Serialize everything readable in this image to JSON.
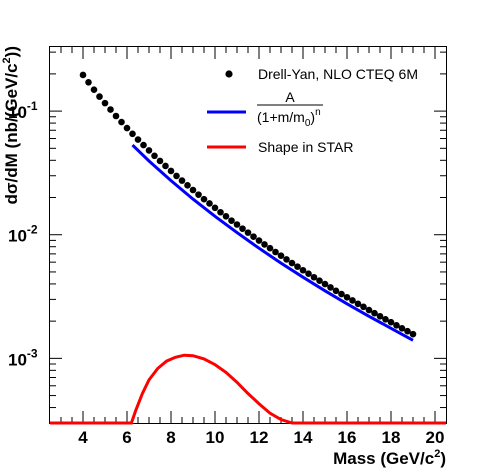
{
  "chart_data": {
    "type": "scatter",
    "xlabel": "Mass (GeV/c²)",
    "ylabel": "dσ/dM (nb/(GeV/c²))",
    "xlim": [
      2.5,
      20.5
    ],
    "ylim": [
      0.0003,
      0.33
    ],
    "yscale": "log",
    "grid": false,
    "legend_position": "top-right",
    "x_ticks": [
      4,
      6,
      8,
      10,
      12,
      14,
      16,
      18,
      20
    ],
    "x_tick_labels": [
      "4",
      "6",
      "8",
      "10",
      "12",
      "14",
      "16",
      "18",
      "20"
    ],
    "y_ticks": [
      0.001,
      0.01,
      0.1
    ],
    "y_tick_labels": [
      {
        "base": "10",
        "exp": "-3"
      },
      {
        "base": "10",
        "exp": "-2"
      },
      {
        "base": "10",
        "exp": "-1"
      }
    ],
    "series": [
      {
        "name": "Drell-Yan, NLO CTEQ 6M",
        "kind": "markers",
        "color": "#000000",
        "x_start": 4.0,
        "x_step": 0.25,
        "y": [
          0.196,
          0.171,
          0.149,
          0.131,
          0.116,
          0.103,
          0.0913,
          0.0815,
          0.0729,
          0.0655,
          0.0589,
          0.0531,
          0.0481,
          0.0435,
          0.0395,
          0.036,
          0.0328,
          0.0299,
          0.0274,
          0.0251,
          0.023,
          0.0211,
          0.0194,
          0.0179,
          0.0165,
          0.0152,
          0.0141,
          0.013,
          0.0121,
          0.0112,
          0.0104,
          0.00965,
          0.00897,
          0.00835,
          0.00778,
          0.00725,
          0.00677,
          0.00632,
          0.0059,
          0.00552,
          0.00516,
          0.00484,
          0.00453,
          0.00425,
          0.00399,
          0.00375,
          0.00352,
          0.00331,
          0.00312,
          0.00294,
          0.00276,
          0.00261,
          0.00246,
          0.00232,
          0.00219,
          0.00207,
          0.00196,
          0.00185,
          0.00175,
          0.00166,
          0.00157
        ]
      },
      {
        "name": "A/(1+m/m0)^n",
        "kind": "fit-line",
        "color": "#0000ff",
        "x": [
          6.25,
          7,
          8,
          9,
          10,
          11,
          12,
          13,
          14,
          15,
          16,
          17,
          18,
          19
        ],
        "y": [
          0.0531,
          0.0395,
          0.0274,
          0.0194,
          0.0141,
          0.0104,
          0.00778,
          0.0059,
          0.00453,
          0.00352,
          0.00276,
          0.00219,
          0.00175,
          0.0014
        ]
      },
      {
        "name": "Shape in STAR",
        "kind": "line",
        "color": "#ff0000",
        "x": [
          2.5,
          6.2,
          6.4,
          6.7,
          7.0,
          7.4,
          7.8,
          8.2,
          8.6,
          9.0,
          9.5,
          10.0,
          10.5,
          11.0,
          11.5,
          12.0,
          12.5,
          13.0,
          13.5,
          20.5
        ],
        "y": [
          0.0003,
          0.0003,
          0.00038,
          0.00052,
          0.00067,
          0.00083,
          0.00095,
          0.00102,
          0.00106,
          0.00105,
          0.00099,
          0.00089,
          0.00077,
          0.00064,
          0.00052,
          0.00043,
          0.00036,
          0.00032,
          0.0003,
          0.0003
        ]
      }
    ]
  },
  "legend": {
    "item1": "Drell-Yan, NLO CTEQ 6M",
    "item2_numerator": "A",
    "item2_denominator_main": "(1+m/m",
    "item2_denominator_sub": "0",
    "item2_denominator_close": ")",
    "item2_denominator_exp": "n",
    "item3": "Shape in STAR"
  },
  "axis": {
    "x_title": "Mass (GeV/c",
    "x_title_sup": "2",
    "x_title_close": ")",
    "y_title_main": "dσ/dM (nb/(GeV/c",
    "y_title_sup": "2",
    "y_title_close": "))"
  }
}
